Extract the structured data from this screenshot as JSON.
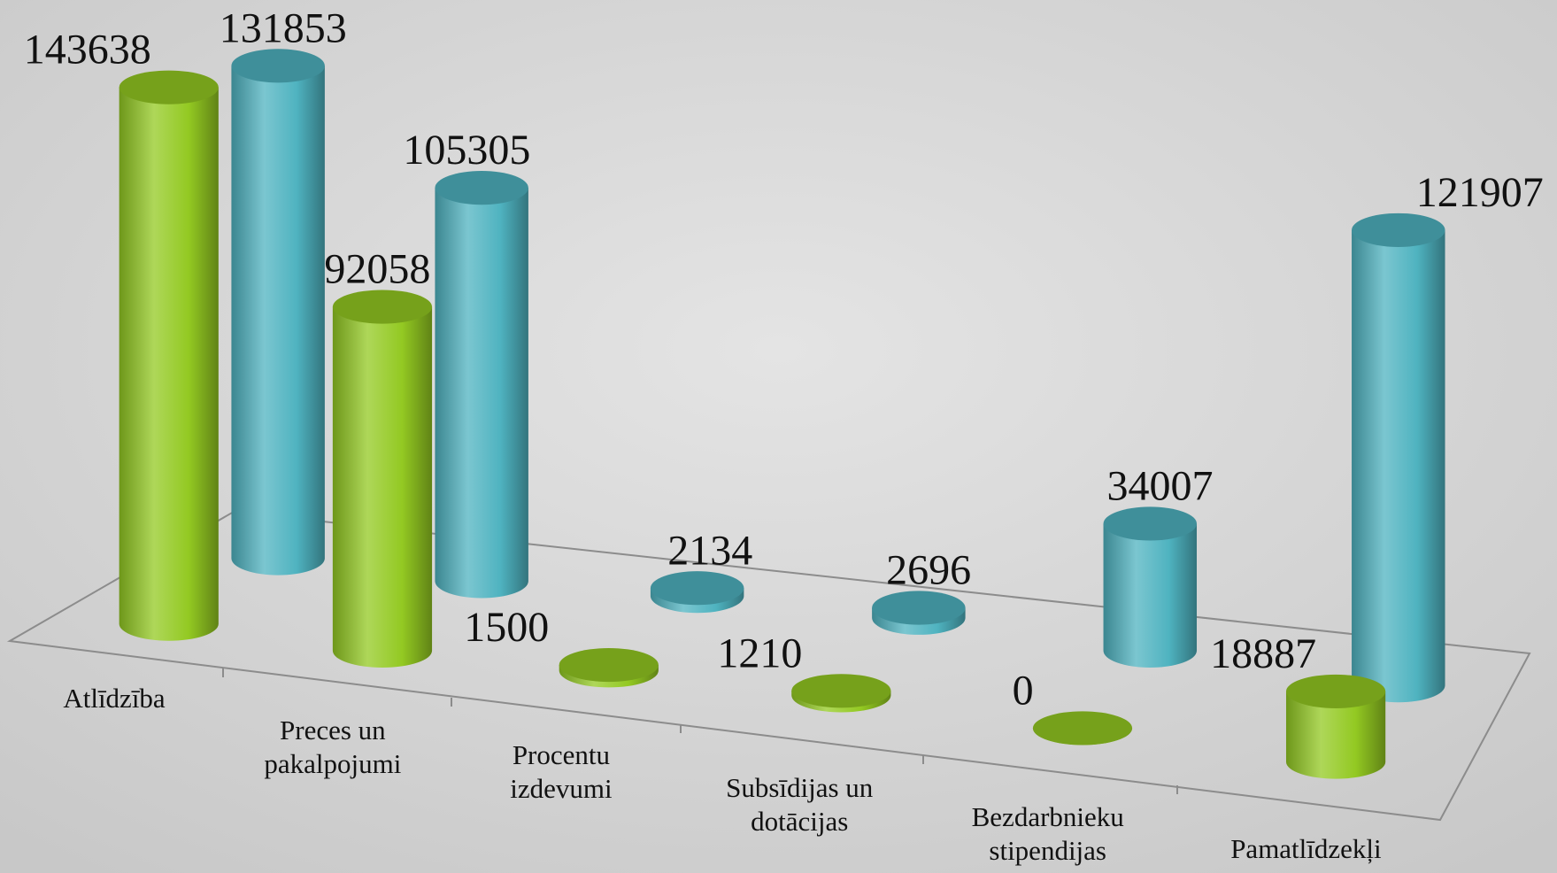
{
  "chart_data": {
    "type": "bar3d",
    "categories": [
      "Atlīdzība",
      "Preces un pakalpojumi",
      "Procentu izdevumi",
      "Subsīdijas un dotācijas",
      "Bezdarbnieku stipendijas",
      "Pamatlīdzekļi"
    ],
    "series": [
      {
        "color": "#93c922",
        "values": [
          143638,
          92058,
          1500,
          1210,
          0,
          18887
        ]
      },
      {
        "color": "#4fb3c0",
        "values": [
          131853,
          105305,
          2134,
          2696,
          34007,
          121907
        ]
      }
    ]
  }
}
